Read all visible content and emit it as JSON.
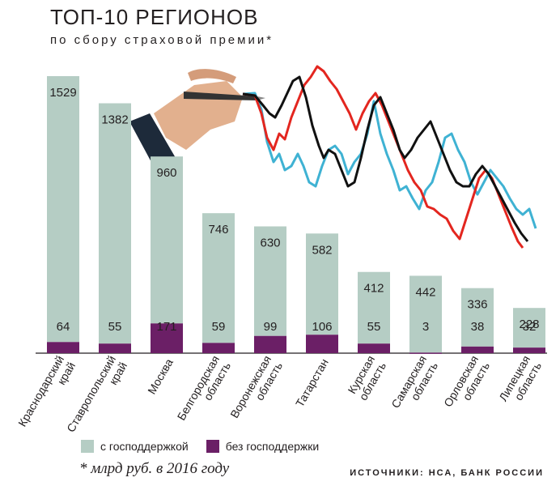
{
  "title": "ТОП-10 РЕГИОНОВ",
  "subtitle": "по сбору страховой премии*",
  "footnote": "* млрд руб. в 2016 году",
  "sources": "ИСТОЧНИКИ: НСА, БАНК РОССИИ",
  "colors": {
    "with_support": "#b5cdc4",
    "without_support": "#6b1f66",
    "line_cyan": "#3fb2d3",
    "line_red": "#e3261f",
    "line_black": "#111111"
  },
  "chart_data": {
    "type": "bar",
    "stacked": true,
    "categories": [
      "Краснодарский край",
      "Ставропольский край",
      "Москва",
      "Белгородская область",
      "Воронежская область",
      "Татарстан",
      "Курская область",
      "Самарская область",
      "Орловская область",
      "Липецкая область"
    ],
    "category_lines": [
      [
        "Краснодарский",
        "край"
      ],
      [
        "Ставропольский",
        "край"
      ],
      [
        "Москва"
      ],
      [
        "Белгородская",
        "область"
      ],
      [
        "Воронежская",
        "область"
      ],
      [
        "Татарстан"
      ],
      [
        "Курская",
        "область"
      ],
      [
        "Самарская",
        "область"
      ],
      [
        "Орловская",
        "область"
      ],
      [
        "Липецкая",
        "область"
      ]
    ],
    "series": [
      {
        "name": "с господдержкой",
        "values": [
          1529,
          1382,
          960,
          746,
          630,
          582,
          412,
          442,
          336,
          228
        ]
      },
      {
        "name": "без господдержки",
        "values": [
          64,
          55,
          171,
          59,
          99,
          106,
          55,
          3,
          38,
          32
        ]
      }
    ],
    "legend": [
      "с господдержкой",
      "без господдержки"
    ],
    "legend_position": "bottom-left",
    "grid": false
  }
}
